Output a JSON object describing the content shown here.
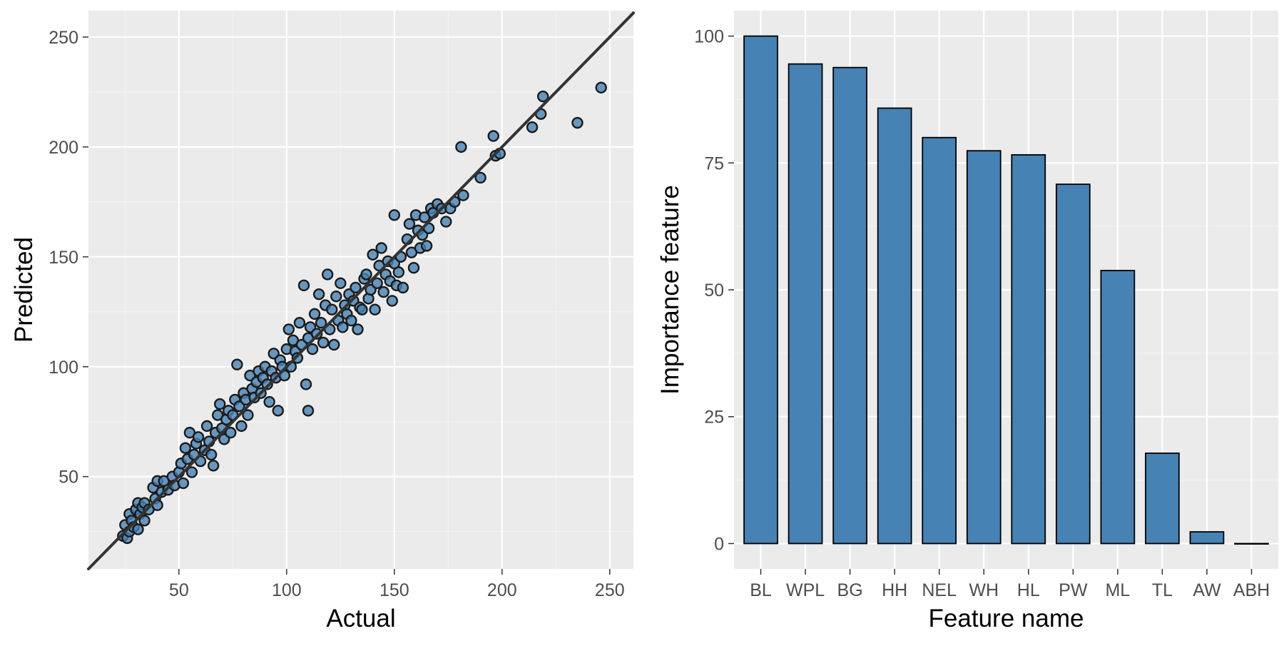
{
  "colors": {
    "panel_background": "#EBEBEB",
    "grid_major": "#FFFFFF",
    "grid_minor": "#F4F4F4",
    "fill": "#4682B4",
    "outline": "#1A1A1A",
    "line": "#333333",
    "tick_text": "#4D4D4D"
  },
  "chart_data": [
    {
      "type": "scatter",
      "xlabel": "Actual",
      "ylabel": "Predicted",
      "xlim": [
        8,
        261
      ],
      "ylim": [
        8,
        262
      ],
      "x_ticks": [
        50,
        100,
        150,
        200,
        250
      ],
      "y_ticks": [
        50,
        100,
        150,
        200,
        250
      ],
      "grid": true,
      "reference_line": {
        "slope": 1,
        "intercept": 0
      },
      "points": [
        [
          24,
          23
        ],
        [
          25,
          28
        ],
        [
          26,
          22
        ],
        [
          27,
          25
        ],
        [
          27,
          33
        ],
        [
          28,
          30
        ],
        [
          29,
          27
        ],
        [
          30,
          35
        ],
        [
          31,
          38
        ],
        [
          31,
          26
        ],
        [
          32,
          33
        ],
        [
          33,
          36
        ],
        [
          34,
          30
        ],
        [
          34,
          38
        ],
        [
          36,
          35
        ],
        [
          38,
          45
        ],
        [
          39,
          40
        ],
        [
          40,
          48
        ],
        [
          40,
          37
        ],
        [
          42,
          43
        ],
        [
          43,
          48
        ],
        [
          45,
          44
        ],
        [
          47,
          50
        ],
        [
          48,
          46
        ],
        [
          50,
          52
        ],
        [
          51,
          56
        ],
        [
          52,
          47
        ],
        [
          53,
          63
        ],
        [
          54,
          58
        ],
        [
          55,
          70
        ],
        [
          56,
          52
        ],
        [
          57,
          60
        ],
        [
          58,
          65
        ],
        [
          59,
          68
        ],
        [
          60,
          57
        ],
        [
          62,
          62
        ],
        [
          63,
          73
        ],
        [
          64,
          66
        ],
        [
          65,
          60
        ],
        [
          66,
          55
        ],
        [
          67,
          70
        ],
        [
          68,
          78
        ],
        [
          69,
          83
        ],
        [
          70,
          72
        ],
        [
          71,
          67
        ],
        [
          72,
          76
        ],
        [
          73,
          80
        ],
        [
          74,
          70
        ],
        [
          75,
          78
        ],
        [
          76,
          85
        ],
        [
          77,
          101
        ],
        [
          78,
          82
        ],
        [
          79,
          73
        ],
        [
          80,
          88
        ],
        [
          81,
          85
        ],
        [
          82,
          78
        ],
        [
          83,
          96
        ],
        [
          84,
          90
        ],
        [
          85,
          86
        ],
        [
          86,
          93
        ],
        [
          87,
          98
        ],
        [
          88,
          88
        ],
        [
          89,
          95
        ],
        [
          90,
          100
        ],
        [
          91,
          92
        ],
        [
          92,
          84
        ],
        [
          93,
          98
        ],
        [
          94,
          106
        ],
        [
          95,
          95
        ],
        [
          96,
          80
        ],
        [
          97,
          103
        ],
        [
          98,
          100
        ],
        [
          99,
          96
        ],
        [
          100,
          108
        ],
        [
          101,
          117
        ],
        [
          102,
          100
        ],
        [
          103,
          112
        ],
        [
          104,
          107
        ],
        [
          105,
          104
        ],
        [
          106,
          120
        ],
        [
          107,
          110
        ],
        [
          108,
          137
        ],
        [
          109,
          92
        ],
        [
          110,
          80
        ],
        [
          110,
          113
        ],
        [
          111,
          118
        ],
        [
          112,
          108
        ],
        [
          113,
          124
        ],
        [
          114,
          115
        ],
        [
          115,
          133
        ],
        [
          116,
          120
        ],
        [
          117,
          111
        ],
        [
          118,
          128
        ],
        [
          119,
          142
        ],
        [
          120,
          117
        ],
        [
          121,
          126
        ],
        [
          122,
          110
        ],
        [
          123,
          132
        ],
        [
          124,
          121
        ],
        [
          125,
          138
        ],
        [
          126,
          118
        ],
        [
          127,
          128
        ],
        [
          128,
          124
        ],
        [
          129,
          133
        ],
        [
          130,
          121
        ],
        [
          131,
          130
        ],
        [
          132,
          136
        ],
        [
          133,
          117
        ],
        [
          134,
          127
        ],
        [
          135,
          126
        ],
        [
          136,
          140
        ],
        [
          137,
          142
        ],
        [
          138,
          131
        ],
        [
          139,
          135
        ],
        [
          140,
          151
        ],
        [
          141,
          126
        ],
        [
          142,
          138
        ],
        [
          143,
          146
        ],
        [
          144,
          154
        ],
        [
          145,
          134
        ],
        [
          146,
          142
        ],
        [
          147,
          148
        ],
        [
          148,
          139
        ],
        [
          149,
          130
        ],
        [
          150,
          147
        ],
        [
          150,
          169
        ],
        [
          151,
          137
        ],
        [
          152,
          143
        ],
        [
          153,
          150
        ],
        [
          154,
          136
        ],
        [
          156,
          158
        ],
        [
          157,
          165
        ],
        [
          158,
          152
        ],
        [
          159,
          145
        ],
        [
          160,
          169
        ],
        [
          161,
          162
        ],
        [
          162,
          154
        ],
        [
          163,
          160
        ],
        [
          164,
          168
        ],
        [
          165,
          155
        ],
        [
          166,
          163
        ],
        [
          167,
          172
        ],
        [
          168,
          170
        ],
        [
          170,
          174
        ],
        [
          172,
          172
        ],
        [
          174,
          166
        ],
        [
          176,
          172
        ],
        [
          178,
          175
        ],
        [
          181,
          200
        ],
        [
          182,
          178
        ],
        [
          190,
          186
        ],
        [
          196,
          205
        ],
        [
          197,
          196
        ],
        [
          199,
          197
        ],
        [
          214,
          209
        ],
        [
          218,
          215
        ],
        [
          219,
          223
        ],
        [
          235,
          211
        ],
        [
          246,
          227
        ]
      ]
    },
    {
      "type": "bar",
      "xlabel": "Feature name",
      "ylabel": "Importance feature",
      "ylim": [
        -5,
        105
      ],
      "y_ticks": [
        0,
        25,
        50,
        75,
        100
      ],
      "grid": true,
      "categories": [
        "BL",
        "WPL",
        "BG",
        "HH",
        "NEL",
        "WH",
        "HL",
        "PW",
        "ML",
        "TL",
        "AW",
        "ABH"
      ],
      "values": [
        100,
        94.5,
        93.8,
        85.8,
        80,
        77.4,
        76.6,
        70.8,
        53.8,
        17.8,
        2.3,
        0
      ]
    }
  ]
}
